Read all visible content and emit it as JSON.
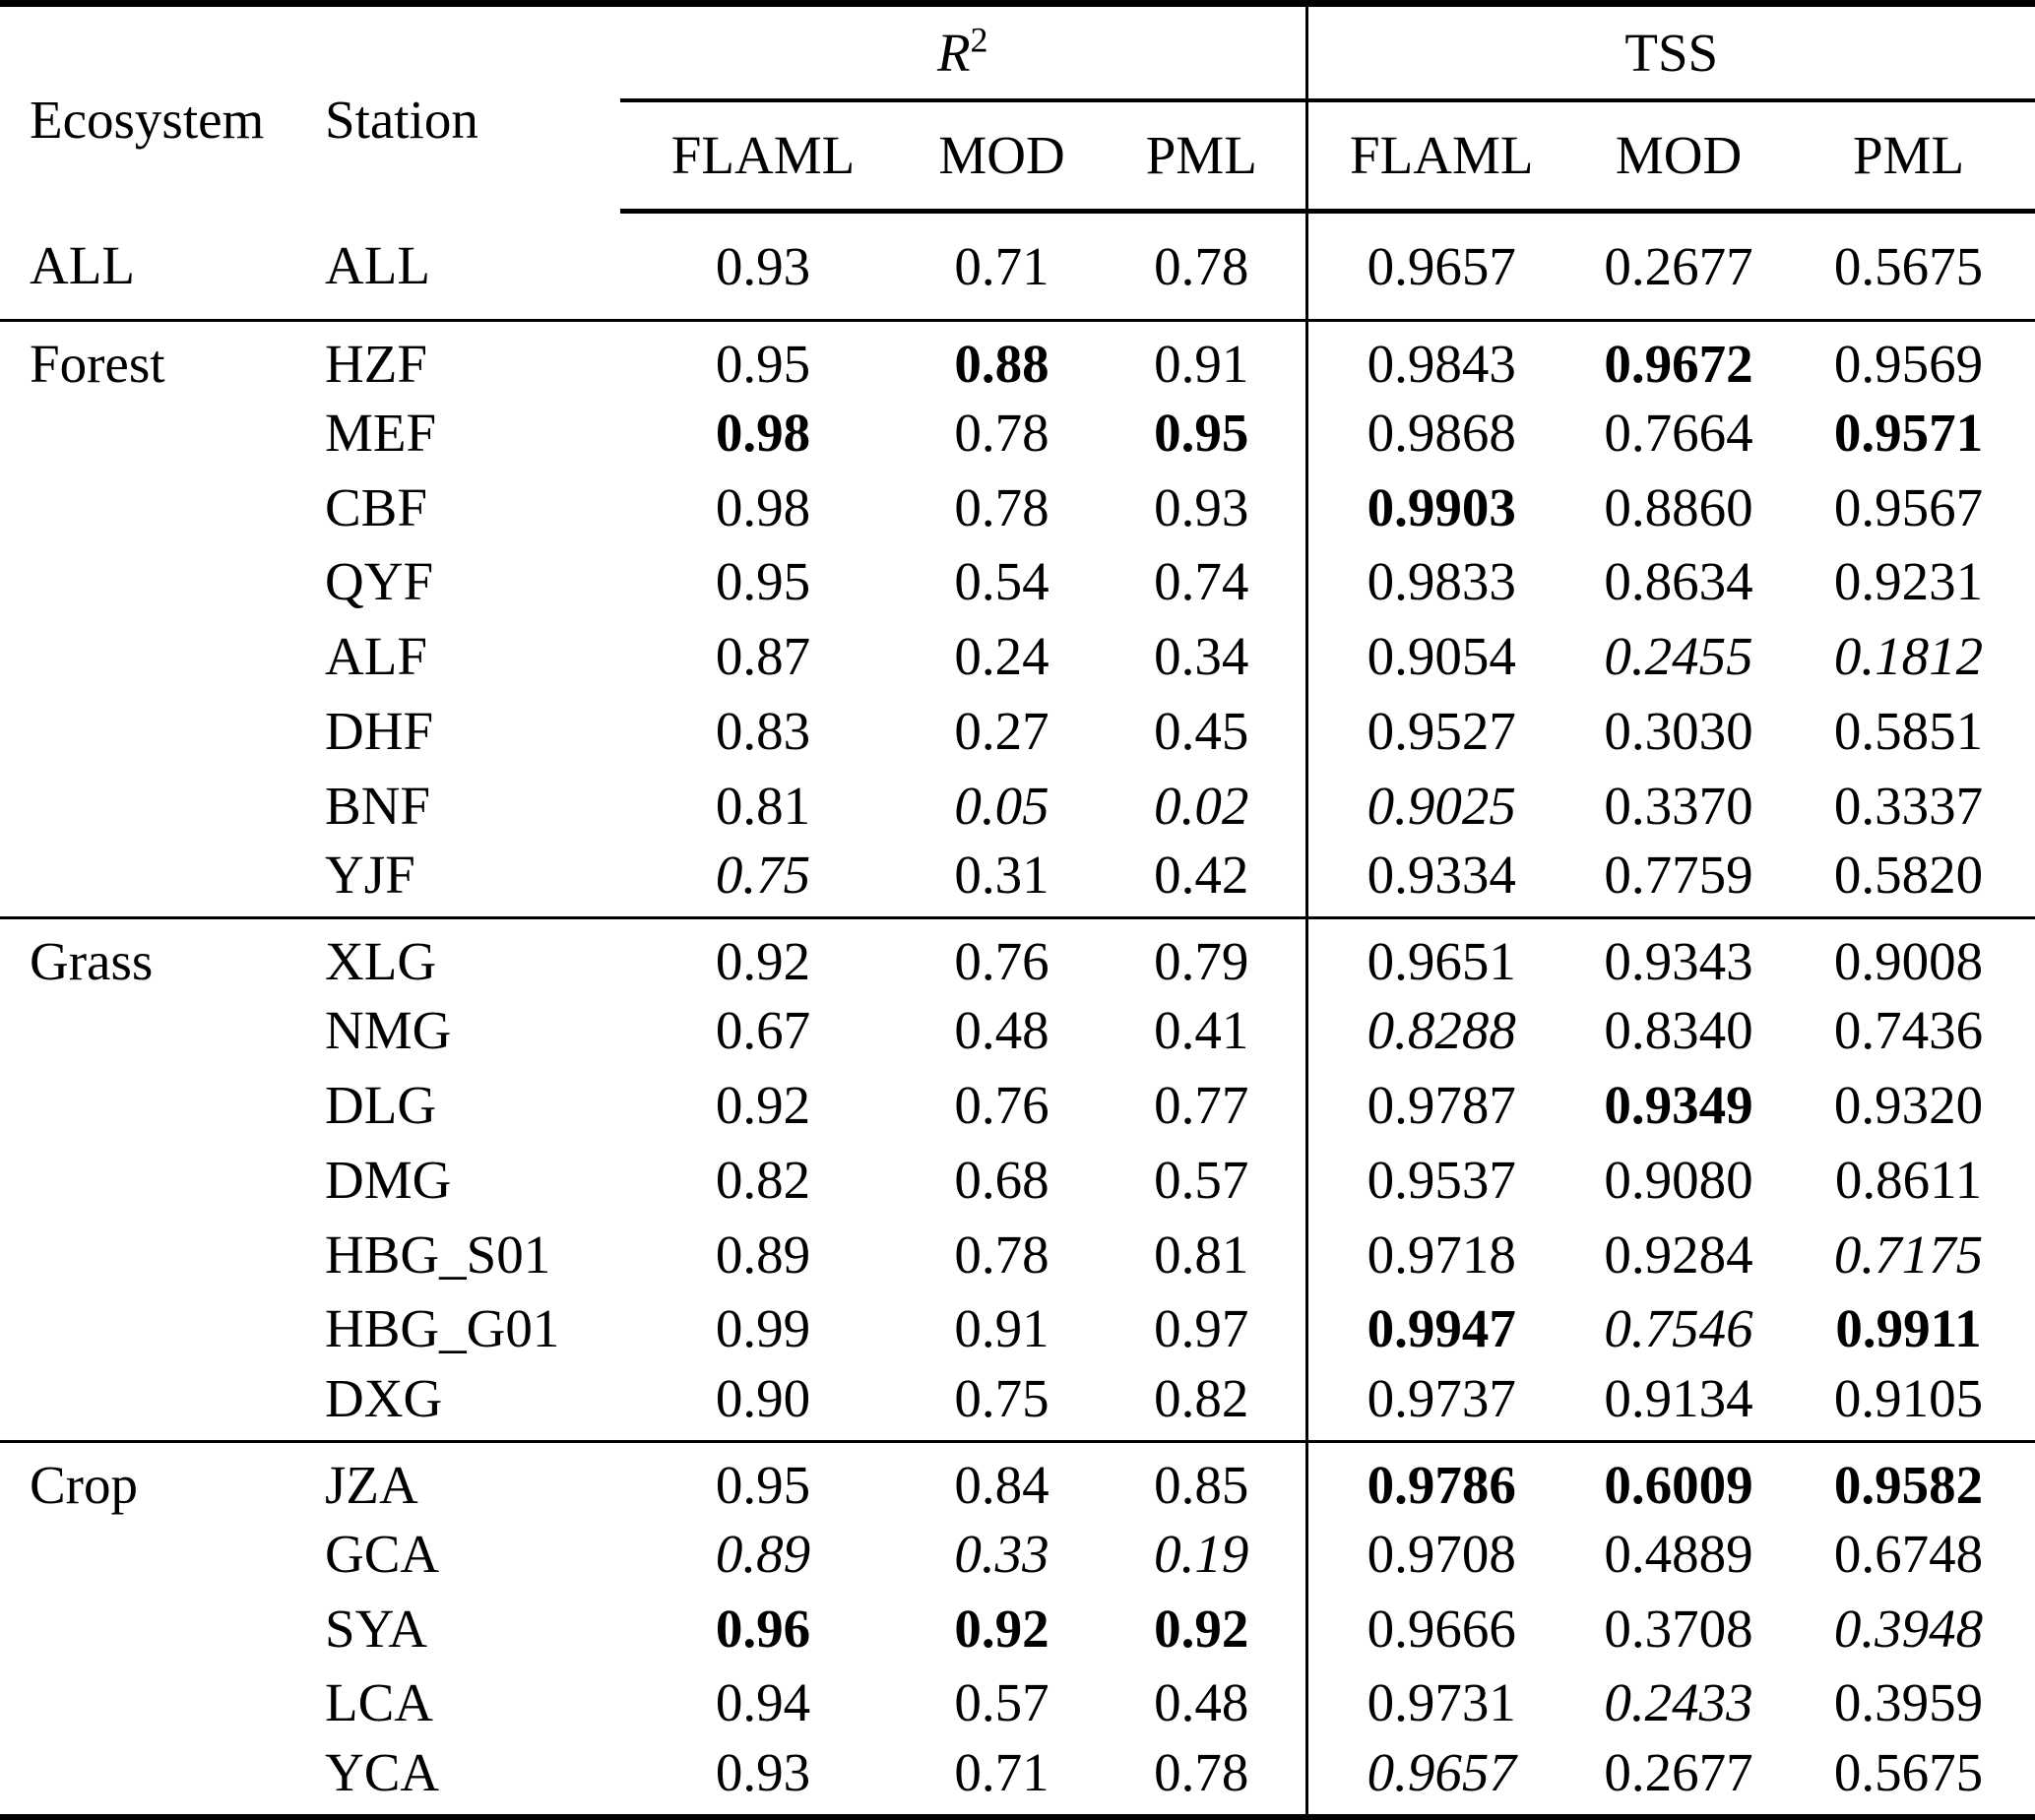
{
  "colors": {
    "foreground": "#000000",
    "background": "#ffffff",
    "rule": "#000000"
  },
  "table": {
    "header": {
      "ecosystem": "Ecosystem",
      "station": "Station",
      "r2_base": "R",
      "r2_sup": "2",
      "tss": "TSS"
    },
    "sub_headers": [
      "FLAML",
      "MOD",
      "PML",
      "FLAML",
      "MOD",
      "PML"
    ],
    "metric_groups": [
      {
        "name": "R2",
        "models": [
          "FLAML",
          "MOD",
          "PML"
        ]
      },
      {
        "name": "TSS",
        "models": [
          "FLAML",
          "MOD",
          "PML"
        ]
      }
    ],
    "style_legend": {
      "b": "bold",
      "i": "italic",
      "": "regular"
    },
    "sections": [
      {
        "ecosystem": "ALL",
        "rows": [
          {
            "station": "ALL",
            "cells": [
              [
                "0.93",
                ""
              ],
              [
                "0.71",
                ""
              ],
              [
                "0.78",
                ""
              ],
              [
                "0.9657",
                ""
              ],
              [
                "0.2677",
                ""
              ],
              [
                "0.5675",
                ""
              ]
            ]
          }
        ]
      },
      {
        "ecosystem": "Forest",
        "rows": [
          {
            "station": "HZF",
            "cells": [
              [
                "0.95",
                ""
              ],
              [
                "0.88",
                "b"
              ],
              [
                "0.91",
                ""
              ],
              [
                "0.9843",
                ""
              ],
              [
                "0.9672",
                "b"
              ],
              [
                "0.9569",
                ""
              ]
            ]
          },
          {
            "station": "MEF",
            "cells": [
              [
                "0.98",
                "b"
              ],
              [
                "0.78",
                ""
              ],
              [
                "0.95",
                "b"
              ],
              [
                "0.9868",
                ""
              ],
              [
                "0.7664",
                ""
              ],
              [
                "0.9571",
                "b"
              ]
            ]
          },
          {
            "station": "CBF",
            "cells": [
              [
                "0.98",
                ""
              ],
              [
                "0.78",
                ""
              ],
              [
                "0.93",
                ""
              ],
              [
                "0.9903",
                "b"
              ],
              [
                "0.8860",
                ""
              ],
              [
                "0.9567",
                ""
              ]
            ]
          },
          {
            "station": "QYF",
            "cells": [
              [
                "0.95",
                ""
              ],
              [
                "0.54",
                ""
              ],
              [
                "0.74",
                ""
              ],
              [
                "0.9833",
                ""
              ],
              [
                "0.8634",
                ""
              ],
              [
                "0.9231",
                ""
              ]
            ]
          },
          {
            "station": "ALF",
            "cells": [
              [
                "0.87",
                ""
              ],
              [
                "0.24",
                ""
              ],
              [
                "0.34",
                ""
              ],
              [
                "0.9054",
                ""
              ],
              [
                "0.2455",
                "i"
              ],
              [
                "0.1812",
                "i"
              ]
            ]
          },
          {
            "station": "DHF",
            "cells": [
              [
                "0.83",
                ""
              ],
              [
                "0.27",
                ""
              ],
              [
                "0.45",
                ""
              ],
              [
                "0.9527",
                ""
              ],
              [
                "0.3030",
                ""
              ],
              [
                "0.5851",
                ""
              ]
            ]
          },
          {
            "station": "BNF",
            "cells": [
              [
                "0.81",
                ""
              ],
              [
                "0.05",
                "i"
              ],
              [
                "0.02",
                "i"
              ],
              [
                "0.9025",
                "i"
              ],
              [
                "0.3370",
                ""
              ],
              [
                "0.3337",
                ""
              ]
            ]
          },
          {
            "station": "YJF",
            "cells": [
              [
                "0.75",
                "i"
              ],
              [
                "0.31",
                ""
              ],
              [
                "0.42",
                ""
              ],
              [
                "0.9334",
                ""
              ],
              [
                "0.7759",
                ""
              ],
              [
                "0.5820",
                ""
              ]
            ]
          }
        ]
      },
      {
        "ecosystem": "Grass",
        "rows": [
          {
            "station": "XLG",
            "cells": [
              [
                "0.92",
                ""
              ],
              [
                "0.76",
                ""
              ],
              [
                "0.79",
                ""
              ],
              [
                "0.9651",
                ""
              ],
              [
                "0.9343",
                ""
              ],
              [
                "0.9008",
                ""
              ]
            ]
          },
          {
            "station": "NMG",
            "cells": [
              [
                "0.67",
                ""
              ],
              [
                "0.48",
                ""
              ],
              [
                "0.41",
                ""
              ],
              [
                "0.8288",
                "i"
              ],
              [
                "0.8340",
                ""
              ],
              [
                "0.7436",
                ""
              ]
            ]
          },
          {
            "station": "DLG",
            "cells": [
              [
                "0.92",
                ""
              ],
              [
                "0.76",
                ""
              ],
              [
                "0.77",
                ""
              ],
              [
                "0.9787",
                ""
              ],
              [
                "0.9349",
                "b"
              ],
              [
                "0.9320",
                ""
              ]
            ]
          },
          {
            "station": "DMG",
            "cells": [
              [
                "0.82",
                ""
              ],
              [
                "0.68",
                ""
              ],
              [
                "0.57",
                ""
              ],
              [
                "0.9537",
                ""
              ],
              [
                "0.9080",
                ""
              ],
              [
                "0.8611",
                ""
              ]
            ]
          },
          {
            "station": "HBG_S01",
            "cells": [
              [
                "0.89",
                ""
              ],
              [
                "0.78",
                ""
              ],
              [
                "0.81",
                ""
              ],
              [
                "0.9718",
                ""
              ],
              [
                "0.9284",
                ""
              ],
              [
                "0.7175",
                "i"
              ]
            ]
          },
          {
            "station": "HBG_G01",
            "cells": [
              [
                "0.99",
                ""
              ],
              [
                "0.91",
                ""
              ],
              [
                "0.97",
                ""
              ],
              [
                "0.9947",
                "b"
              ],
              [
                "0.7546",
                "i"
              ],
              [
                "0.9911",
                "b"
              ]
            ]
          },
          {
            "station": "DXG",
            "cells": [
              [
                "0.90",
                ""
              ],
              [
                "0.75",
                ""
              ],
              [
                "0.82",
                ""
              ],
              [
                "0.9737",
                ""
              ],
              [
                "0.9134",
                ""
              ],
              [
                "0.9105",
                ""
              ]
            ]
          }
        ]
      },
      {
        "ecosystem": "Crop",
        "rows": [
          {
            "station": "JZA",
            "cells": [
              [
                "0.95",
                ""
              ],
              [
                "0.84",
                ""
              ],
              [
                "0.85",
                ""
              ],
              [
                "0.9786",
                "b"
              ],
              [
                "0.6009",
                "b"
              ],
              [
                "0.9582",
                "b"
              ]
            ]
          },
          {
            "station": "GCA",
            "cells": [
              [
                "0.89",
                "i"
              ],
              [
                "0.33",
                "i"
              ],
              [
                "0.19",
                "i"
              ],
              [
                "0.9708",
                ""
              ],
              [
                "0.4889",
                ""
              ],
              [
                "0.6748",
                ""
              ]
            ]
          },
          {
            "station": "SYA",
            "cells": [
              [
                "0.96",
                "b"
              ],
              [
                "0.92",
                "b"
              ],
              [
                "0.92",
                "b"
              ],
              [
                "0.9666",
                ""
              ],
              [
                "0.3708",
                ""
              ],
              [
                "0.3948",
                "i"
              ]
            ]
          },
          {
            "station": "LCA",
            "cells": [
              [
                "0.94",
                ""
              ],
              [
                "0.57",
                ""
              ],
              [
                "0.48",
                ""
              ],
              [
                "0.9731",
                ""
              ],
              [
                "0.2433",
                "i"
              ],
              [
                "0.3959",
                ""
              ]
            ]
          },
          {
            "station": "YCA",
            "cells": [
              [
                "0.93",
                ""
              ],
              [
                "0.71",
                ""
              ],
              [
                "0.78",
                ""
              ],
              [
                "0.9657",
                "i"
              ],
              [
                "0.2677",
                ""
              ],
              [
                "0.5675",
                ""
              ]
            ]
          }
        ]
      }
    ]
  }
}
